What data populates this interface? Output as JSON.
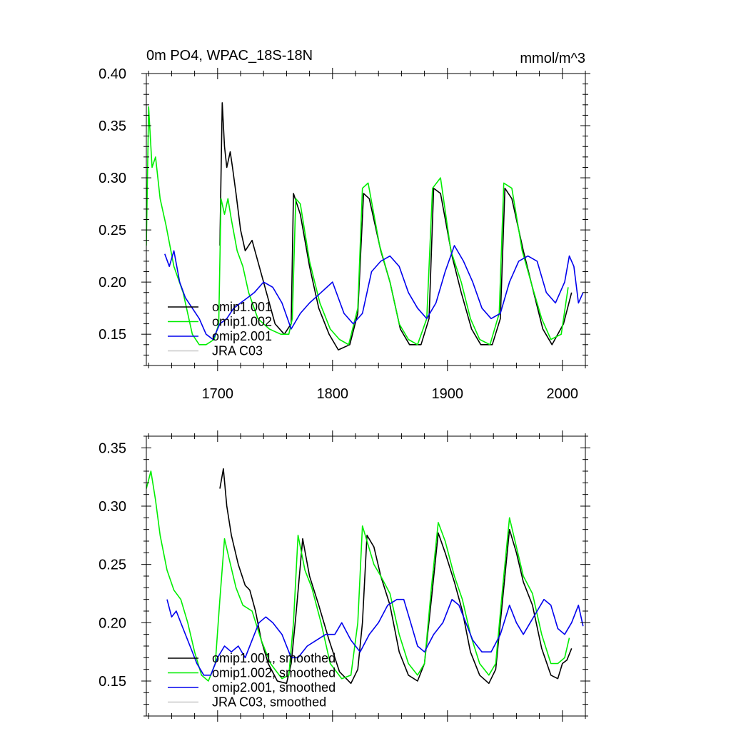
{
  "chart_data": [
    {
      "type": "line",
      "title": "0m PO4, WPAC_18S-18N",
      "units": "mmol/m^3",
      "xlabel": "",
      "ylabel": "",
      "xlim": [
        1638,
        2020
      ],
      "ylim": [
        0.12,
        0.4
      ],
      "xticks": [
        1700,
        1800,
        1900,
        2000
      ],
      "xtick_labels": [
        "1700",
        "1800",
        "1900",
        "2000"
      ],
      "show_xtick_labels": true,
      "yticks": [
        0.15,
        0.2,
        0.25,
        0.3,
        0.35,
        0.4
      ],
      "ytick_labels": [
        "0.15",
        "0.20",
        "0.25",
        "0.30",
        "0.35",
        "0.40"
      ],
      "legend_position": "bottom-left",
      "series": [
        {
          "name": "omip1.001",
          "color": "#000000",
          "smoothed": false,
          "x": [
            1702,
            1704,
            1706,
            1708,
            1711,
            1713,
            1716,
            1720,
            1724,
            1730,
            1740,
            1750,
            1758,
            1764,
            1766,
            1772,
            1780,
            1788,
            1797,
            1805,
            1815,
            1822,
            1827,
            1832,
            1842,
            1850,
            1859,
            1867,
            1877,
            1884,
            1888,
            1894,
            1904,
            1912,
            1921,
            1929,
            1939,
            1946,
            1950,
            1956,
            1966,
            1975,
            1983,
            1991,
            2001,
            2008
          ],
          "y": [
            0.235,
            0.372,
            0.33,
            0.31,
            0.325,
            0.31,
            0.285,
            0.25,
            0.23,
            0.24,
            0.2,
            0.16,
            0.15,
            0.16,
            0.285,
            0.265,
            0.215,
            0.175,
            0.15,
            0.135,
            0.14,
            0.17,
            0.285,
            0.28,
            0.23,
            0.2,
            0.155,
            0.14,
            0.14,
            0.165,
            0.29,
            0.285,
            0.225,
            0.19,
            0.155,
            0.14,
            0.14,
            0.165,
            0.29,
            0.28,
            0.23,
            0.19,
            0.155,
            0.14,
            0.16,
            0.19
          ]
        },
        {
          "name": "omip1.002",
          "color": "#00ee00",
          "smoothed": false,
          "x": [
            1638,
            1640,
            1643,
            1646,
            1650,
            1655,
            1662,
            1670,
            1678,
            1684,
            1690,
            1697,
            1701,
            1703,
            1706,
            1709,
            1712,
            1717,
            1722,
            1727,
            1735,
            1745,
            1755,
            1762,
            1765,
            1768,
            1772,
            1780,
            1789,
            1798,
            1806,
            1814,
            1822,
            1826,
            1831,
            1841,
            1850,
            1858,
            1866,
            1874,
            1882,
            1887,
            1894,
            1903,
            1912,
            1920,
            1928,
            1937,
            1945,
            1949,
            1956,
            1965,
            1974,
            1982,
            1990,
            1999,
            2005
          ],
          "y": [
            0.235,
            0.368,
            0.31,
            0.32,
            0.28,
            0.255,
            0.215,
            0.19,
            0.15,
            0.14,
            0.14,
            0.145,
            0.16,
            0.28,
            0.265,
            0.28,
            0.26,
            0.23,
            0.215,
            0.19,
            0.165,
            0.155,
            0.15,
            0.15,
            0.165,
            0.28,
            0.275,
            0.22,
            0.18,
            0.155,
            0.145,
            0.14,
            0.175,
            0.29,
            0.295,
            0.235,
            0.2,
            0.16,
            0.145,
            0.14,
            0.165,
            0.29,
            0.3,
            0.23,
            0.2,
            0.165,
            0.145,
            0.14,
            0.17,
            0.295,
            0.29,
            0.23,
            0.195,
            0.165,
            0.145,
            0.15,
            0.195
          ]
        },
        {
          "name": "omip2.001",
          "color": "#0000ee",
          "smoothed": false,
          "x": [
            1654,
            1658,
            1662,
            1667,
            1672,
            1678,
            1684,
            1690,
            1696,
            1702,
            1708,
            1714,
            1720,
            1726,
            1732,
            1740,
            1748,
            1756,
            1764,
            1772,
            1780,
            1790,
            1800,
            1810,
            1818,
            1826,
            1834,
            1842,
            1850,
            1858,
            1866,
            1874,
            1882,
            1890,
            1898,
            1906,
            1914,
            1922,
            1930,
            1938,
            1946,
            1954,
            1962,
            1970,
            1978,
            1986,
            1994,
            2002,
            2006,
            2010,
            2014,
            2018
          ],
          "y": [
            0.227,
            0.215,
            0.23,
            0.2,
            0.185,
            0.175,
            0.165,
            0.15,
            0.145,
            0.16,
            0.165,
            0.175,
            0.18,
            0.185,
            0.19,
            0.2,
            0.195,
            0.18,
            0.155,
            0.17,
            0.18,
            0.19,
            0.2,
            0.17,
            0.16,
            0.17,
            0.21,
            0.22,
            0.225,
            0.215,
            0.19,
            0.175,
            0.165,
            0.18,
            0.21,
            0.235,
            0.22,
            0.2,
            0.175,
            0.165,
            0.17,
            0.2,
            0.22,
            0.225,
            0.22,
            0.19,
            0.18,
            0.2,
            0.225,
            0.215,
            0.18,
            0.19
          ]
        },
        {
          "name": "JRA C03",
          "color": "#c8c8c8",
          "smoothed": false,
          "x": [],
          "y": []
        }
      ]
    },
    {
      "type": "line",
      "title": "",
      "units": "",
      "xlabel": "",
      "ylabel": "",
      "xlim": [
        1638,
        2020
      ],
      "ylim": [
        0.12,
        0.36
      ],
      "xticks": [
        1700,
        1800,
        1900,
        2000
      ],
      "xtick_labels": [
        "1700",
        "1800",
        "1900",
        "2000"
      ],
      "show_xtick_labels": false,
      "yticks": [
        0.15,
        0.2,
        0.25,
        0.3,
        0.35
      ],
      "ytick_labels": [
        "0.15",
        "0.20",
        "0.25",
        "0.30",
        "0.35"
      ],
      "legend_position": "bottom-left",
      "series": [
        {
          "name": "omip1.001, smoothed",
          "color": "#000000",
          "smoothed": true,
          "x": [
            1702,
            1705,
            1708,
            1712,
            1718,
            1724,
            1728,
            1733,
            1738,
            1744,
            1752,
            1760,
            1764,
            1768,
            1774,
            1780,
            1788,
            1797,
            1806,
            1816,
            1822,
            1826,
            1830,
            1836,
            1842,
            1850,
            1858,
            1866,
            1874,
            1880,
            1886,
            1892,
            1898,
            1906,
            1913,
            1920,
            1928,
            1936,
            1942,
            1948,
            1954,
            1960,
            1966,
            1974,
            1982,
            1990,
            1996,
            2000,
            2004,
            2008
          ],
          "y": [
            0.315,
            0.332,
            0.3,
            0.275,
            0.25,
            0.232,
            0.228,
            0.21,
            0.185,
            0.165,
            0.15,
            0.148,
            0.165,
            0.205,
            0.272,
            0.24,
            0.215,
            0.185,
            0.158,
            0.148,
            0.16,
            0.2,
            0.275,
            0.265,
            0.24,
            0.215,
            0.175,
            0.155,
            0.15,
            0.165,
            0.22,
            0.277,
            0.26,
            0.235,
            0.21,
            0.175,
            0.155,
            0.148,
            0.16,
            0.22,
            0.28,
            0.26,
            0.235,
            0.215,
            0.178,
            0.155,
            0.152,
            0.165,
            0.168,
            0.178
          ]
        },
        {
          "name": "omip1.002, smoothed",
          "color": "#00ee00",
          "smoothed": true,
          "x": [
            1638,
            1642,
            1646,
            1650,
            1656,
            1662,
            1668,
            1674,
            1680,
            1686,
            1692,
            1698,
            1702,
            1706,
            1710,
            1716,
            1722,
            1730,
            1738,
            1746,
            1756,
            1762,
            1766,
            1770,
            1776,
            1782,
            1790,
            1798,
            1808,
            1816,
            1822,
            1826,
            1830,
            1836,
            1842,
            1850,
            1858,
            1866,
            1874,
            1880,
            1886,
            1892,
            1898,
            1906,
            1913,
            1920,
            1928,
            1936,
            1942,
            1948,
            1954,
            1960,
            1966,
            1974,
            1982,
            1990,
            1996,
            2002,
            2006
          ],
          "y": [
            0.315,
            0.33,
            0.305,
            0.275,
            0.245,
            0.228,
            0.22,
            0.2,
            0.175,
            0.155,
            0.15,
            0.165,
            0.22,
            0.272,
            0.255,
            0.23,
            0.215,
            0.21,
            0.185,
            0.165,
            0.152,
            0.155,
            0.2,
            0.275,
            0.245,
            0.23,
            0.2,
            0.165,
            0.152,
            0.155,
            0.2,
            0.283,
            0.27,
            0.25,
            0.24,
            0.225,
            0.19,
            0.165,
            0.155,
            0.165,
            0.23,
            0.286,
            0.27,
            0.24,
            0.22,
            0.19,
            0.165,
            0.155,
            0.165,
            0.23,
            0.29,
            0.265,
            0.24,
            0.225,
            0.19,
            0.165,
            0.165,
            0.17,
            0.187
          ]
        },
        {
          "name": "omip2.001, smoothed",
          "color": "#0000ee",
          "smoothed": true,
          "x": [
            1656,
            1660,
            1664,
            1670,
            1676,
            1682,
            1688,
            1694,
            1700,
            1706,
            1712,
            1718,
            1724,
            1730,
            1736,
            1742,
            1748,
            1756,
            1764,
            1770,
            1778,
            1786,
            1794,
            1802,
            1808,
            1816,
            1824,
            1832,
            1840,
            1848,
            1856,
            1862,
            1868,
            1874,
            1880,
            1888,
            1896,
            1904,
            1910,
            1916,
            1922,
            1930,
            1938,
            1946,
            1954,
            1960,
            1966,
            1972,
            1978,
            1984,
            1990,
            1996,
            2002,
            2008,
            2014,
            2018
          ],
          "y": [
            0.22,
            0.205,
            0.21,
            0.195,
            0.18,
            0.165,
            0.155,
            0.155,
            0.17,
            0.18,
            0.175,
            0.18,
            0.17,
            0.185,
            0.2,
            0.205,
            0.2,
            0.19,
            0.17,
            0.17,
            0.18,
            0.185,
            0.19,
            0.19,
            0.2,
            0.185,
            0.175,
            0.19,
            0.2,
            0.215,
            0.22,
            0.22,
            0.2,
            0.18,
            0.175,
            0.19,
            0.2,
            0.22,
            0.215,
            0.2,
            0.185,
            0.175,
            0.175,
            0.19,
            0.215,
            0.2,
            0.19,
            0.2,
            0.21,
            0.22,
            0.215,
            0.195,
            0.19,
            0.2,
            0.215,
            0.197
          ]
        },
        {
          "name": "JRA C03, smoothed",
          "color": "#c8c8c8",
          "smoothed": true,
          "x": [],
          "y": []
        }
      ]
    }
  ]
}
